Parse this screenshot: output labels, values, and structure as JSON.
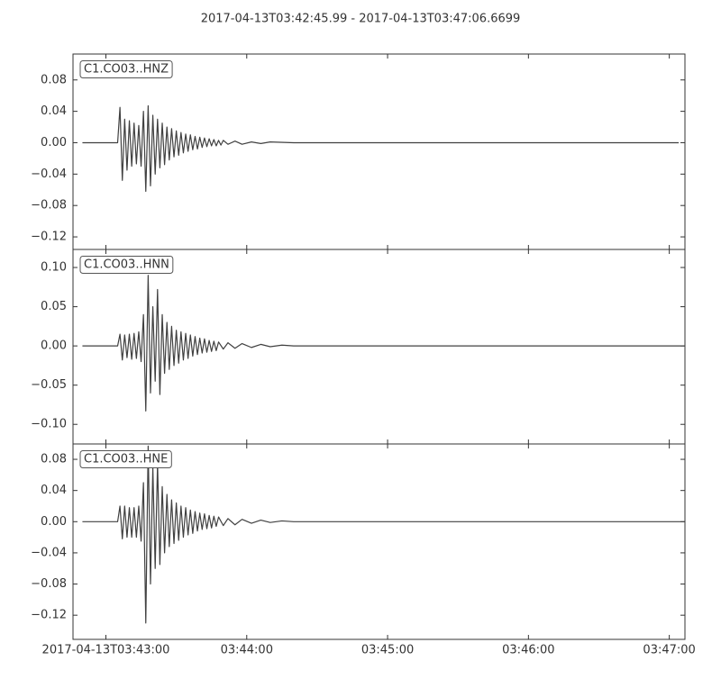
{
  "chart_data": [
    {
      "type": "line",
      "title": "2017-04-13T03:42:45.99  -  2017-04-13T03:47:06.6699",
      "x": [
        50,
        64,
        65,
        66,
        67,
        68,
        69,
        70,
        71,
        72,
        73,
        74,
        75,
        76,
        77,
        78,
        79,
        80,
        81,
        82,
        83,
        84,
        85,
        86,
        87,
        88,
        89,
        90,
        91,
        92,
        93,
        94,
        95,
        96,
        97,
        98,
        99,
        100,
        101,
        102,
        103,
        104,
        105,
        106,
        107,
        108,
        109,
        110,
        112,
        115,
        118,
        122,
        126,
        130,
        140,
        160,
        190,
        230,
        270,
        304
      ],
      "series": [
        {
          "name": "C1.CO03..HNZ",
          "color": "#404040",
          "values": [
            0,
            0,
            0,
            0.045,
            -0.048,
            0.03,
            -0.035,
            0.028,
            -0.03,
            0.025,
            -0.027,
            0.022,
            -0.03,
            0.04,
            -0.062,
            0.047,
            -0.055,
            0.035,
            -0.04,
            0.03,
            -0.032,
            0.025,
            -0.028,
            0.02,
            -0.022,
            0.018,
            -0.018,
            0.015,
            -0.016,
            0.013,
            -0.013,
            0.011,
            -0.011,
            0.01,
            -0.009,
            0.008,
            -0.008,
            0.007,
            -0.006,
            0.006,
            -0.005,
            0.005,
            -0.004,
            0.004,
            -0.004,
            0.003,
            -0.003,
            0.003,
            -0.002,
            0.002,
            -0.002,
            0.001,
            -0.001,
            0.001,
            0,
            0,
            0,
            0,
            0,
            0
          ]
        }
      ],
      "xlim": [
        45.99,
        306.67
      ],
      "ylim": [
        -0.136,
        0.113
      ],
      "yticks": [
        {
          "value": -0.12,
          "label": "−0.12"
        },
        {
          "value": -0.08,
          "label": "−0.08"
        },
        {
          "value": -0.04,
          "label": "−0.04"
        },
        {
          "value": 0,
          "label": "0.00"
        },
        0.04,
        0.08
      ]
    },
    {
      "type": "line",
      "x": [
        50,
        64,
        65,
        66,
        67,
        68,
        69,
        70,
        71,
        72,
        73,
        74,
        75,
        76,
        77,
        78,
        79,
        80,
        81,
        82,
        83,
        84,
        85,
        86,
        87,
        88,
        89,
        90,
        91,
        92,
        93,
        94,
        95,
        96,
        97,
        98,
        99,
        100,
        101,
        102,
        103,
        104,
        105,
        106,
        107,
        108,
        110,
        112,
        115,
        118,
        122,
        126,
        130,
        135,
        140,
        160,
        190,
        230,
        270,
        306.67
      ],
      "series": [
        {
          "name": "C1.CO03..HNN",
          "color": "#404040",
          "values": [
            0,
            0,
            0,
            0.015,
            -0.018,
            0.014,
            -0.015,
            0.015,
            -0.017,
            0.016,
            -0.016,
            0.018,
            -0.02,
            0.04,
            -0.083,
            0.09,
            -0.06,
            0.05,
            -0.045,
            0.072,
            -0.062,
            0.04,
            -0.035,
            0.03,
            -0.03,
            0.025,
            -0.025,
            0.02,
            -0.022,
            0.018,
            -0.018,
            0.016,
            -0.016,
            0.014,
            -0.013,
            0.012,
            -0.011,
            0.01,
            -0.009,
            0.009,
            -0.008,
            0.007,
            -0.007,
            0.006,
            -0.006,
            0.005,
            -0.004,
            0.004,
            -0.003,
            0.003,
            -0.002,
            0.002,
            -0.001,
            0.001,
            0,
            0,
            0,
            0,
            0,
            0
          ]
        }
      ],
      "xlim": [
        45.99,
        306.67
      ],
      "ylim": [
        -0.125,
        0.123
      ],
      "yticks": [
        {
          "value": -0.1,
          "label": "−0.10"
        },
        {
          "value": -0.05,
          "label": "−0.05"
        },
        {
          "value": 0,
          "label": "0.00"
        },
        0.05,
        {
          "value": 0.1,
          "label": "0.10"
        }
      ]
    },
    {
      "type": "line",
      "x": [
        50,
        64,
        65,
        66,
        67,
        68,
        69,
        70,
        71,
        72,
        73,
        74,
        75,
        76,
        77,
        78,
        79,
        80,
        81,
        82,
        83,
        84,
        85,
        86,
        87,
        88,
        89,
        90,
        91,
        92,
        93,
        94,
        95,
        96,
        97,
        98,
        99,
        100,
        101,
        102,
        103,
        104,
        105,
        106,
        107,
        108,
        110,
        112,
        115,
        118,
        122,
        126,
        130,
        135,
        140,
        160,
        190,
        230,
        270,
        306.67
      ],
      "series": [
        {
          "name": "C1.CO03..HNE",
          "color": "#404040",
          "values": [
            0,
            0,
            0,
            0.02,
            -0.022,
            0.02,
            -0.02,
            0.018,
            -0.02,
            0.018,
            -0.02,
            0.02,
            -0.025,
            0.05,
            -0.13,
            0.097,
            -0.08,
            0.07,
            -0.06,
            0.075,
            -0.055,
            0.045,
            -0.04,
            0.035,
            -0.032,
            0.028,
            -0.028,
            0.024,
            -0.024,
            0.02,
            -0.02,
            0.018,
            -0.017,
            0.015,
            -0.015,
            0.013,
            -0.012,
            0.011,
            -0.01,
            0.01,
            -0.009,
            0.008,
            -0.008,
            0.007,
            -0.006,
            0.006,
            -0.005,
            0.004,
            -0.004,
            0.003,
            -0.002,
            0.002,
            -0.001,
            0.001,
            0,
            0,
            0,
            0,
            0,
            0
          ]
        }
      ],
      "xlim": [
        45.99,
        306.67
      ],
      "ylim": [
        -0.151,
        0.0997
      ],
      "yticks": [
        {
          "value": -0.12,
          "label": "−0.12"
        },
        {
          "value": -0.08,
          "label": "−0.08"
        },
        {
          "value": -0.04,
          "label": "−0.04"
        },
        {
          "value": 0,
          "label": "0.00"
        },
        0.04,
        0.08
      ],
      "xticks": [
        {
          "value": 60,
          "label": "2017-04-13T03:43:00"
        },
        {
          "value": 120,
          "label": "03:44:00"
        },
        {
          "value": 180,
          "label": "03:45:00"
        },
        {
          "value": 240,
          "label": "03:46:00"
        },
        {
          "value": 300,
          "label": "03:47:00"
        }
      ]
    }
  ]
}
